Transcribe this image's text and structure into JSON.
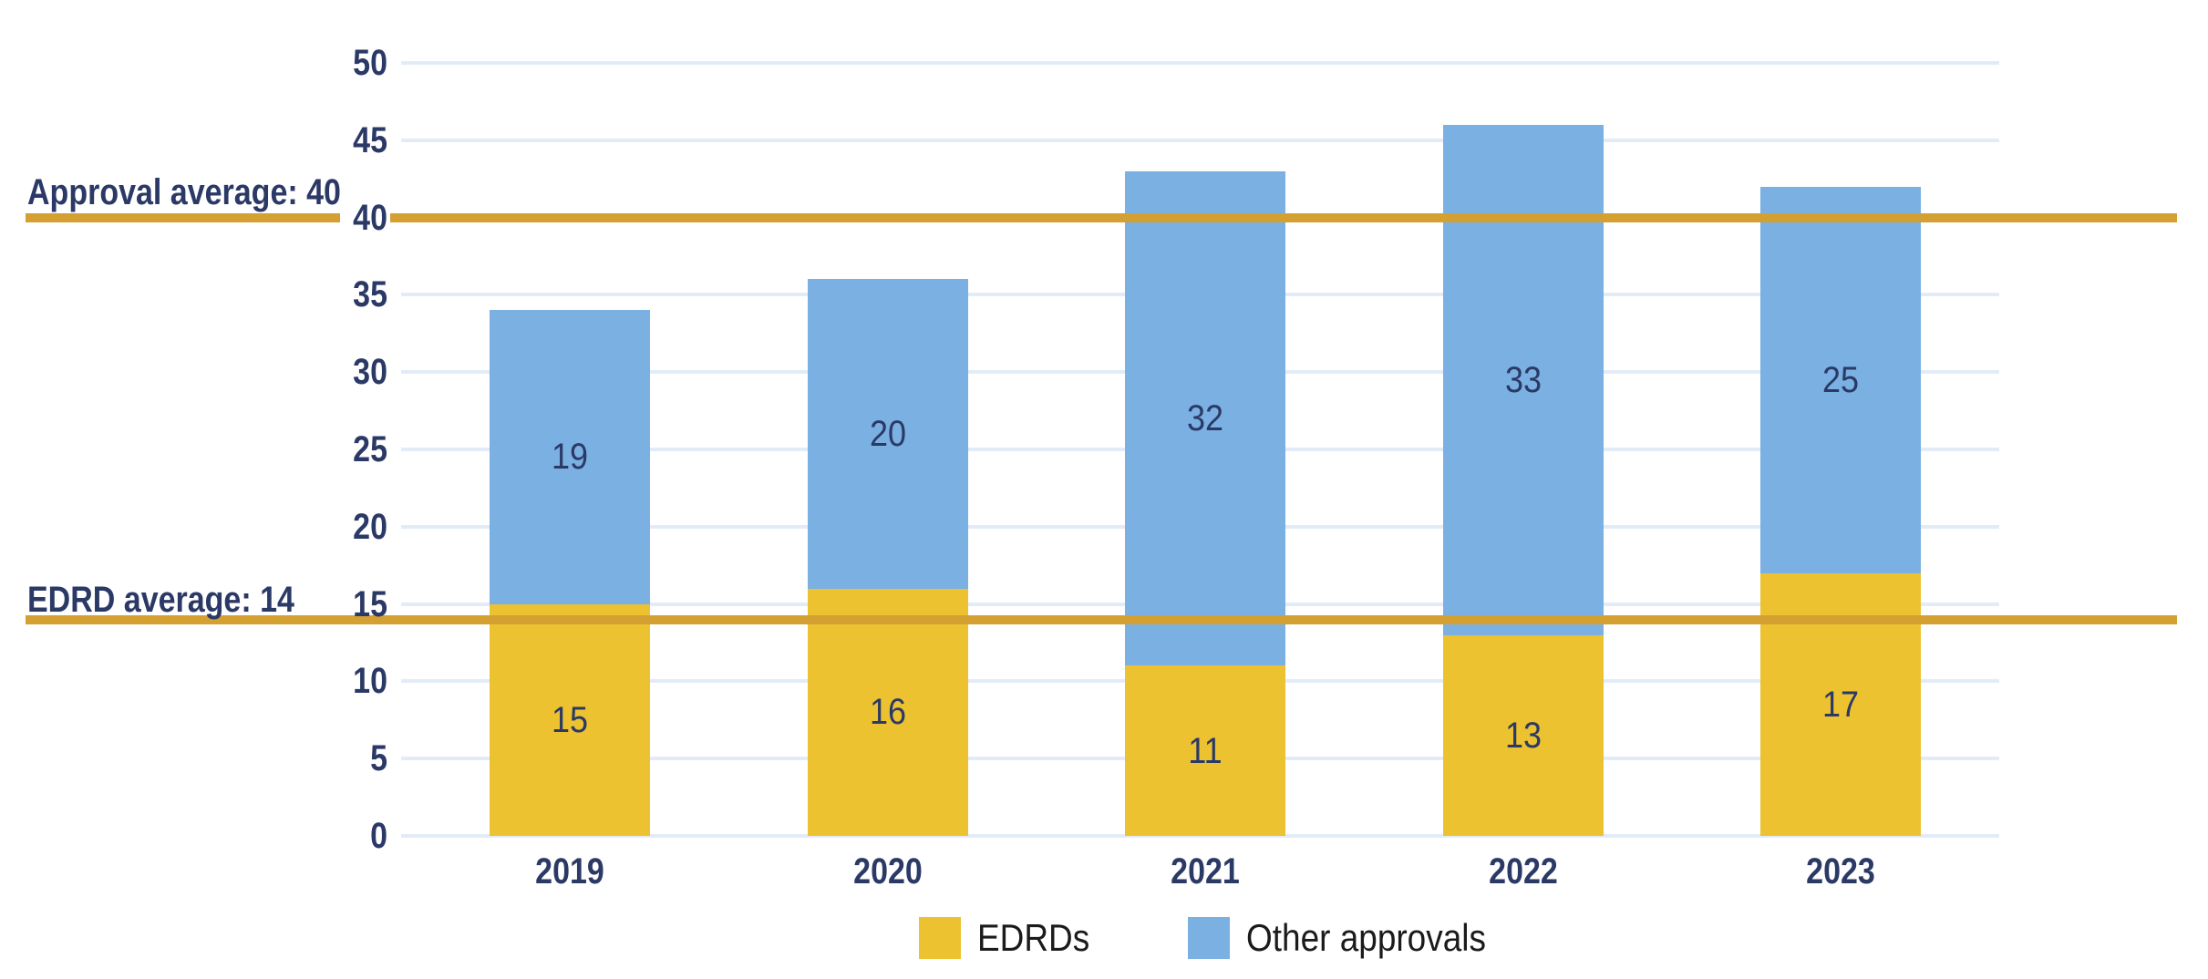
{
  "chart_data": {
    "type": "bar",
    "stacked": true,
    "title": "",
    "xlabel": "",
    "ylabel": "",
    "categories": [
      "2019",
      "2020",
      "2021",
      "2022",
      "2023"
    ],
    "series": [
      {
        "name": "EDRDs",
        "color": "#ECC230",
        "values": [
          15,
          16,
          11,
          13,
          17
        ]
      },
      {
        "name": "Other approvals",
        "color": "#7AB0E2",
        "values": [
          19,
          20,
          32,
          33,
          25
        ]
      }
    ],
    "stack_totals": [
      34,
      36,
      43,
      46,
      42
    ],
    "value_labels_shown": true,
    "reference_lines": [
      {
        "label": "Approval average: 40",
        "value": 40,
        "color": "#D5A032"
      },
      {
        "label": "EDRD average: 14",
        "value": 14,
        "color": "#D5A032"
      }
    ],
    "y_axis": {
      "min": 0,
      "max": 50,
      "step": 5,
      "tick_labels": [
        "0",
        "5",
        "10",
        "15",
        "20",
        "25",
        "30",
        "35",
        "40",
        "45",
        "50"
      ]
    },
    "grid": true,
    "legend_position": "bottom"
  },
  "colors": {
    "edrds": "#ECC230",
    "other_approvals": "#7AB0E2",
    "reference_line": "#D5A032",
    "gridline": "#E2ECF8",
    "axis_text": "#2B3966",
    "legend_text": "#1B1B1B",
    "background": "#FFFFFF"
  }
}
